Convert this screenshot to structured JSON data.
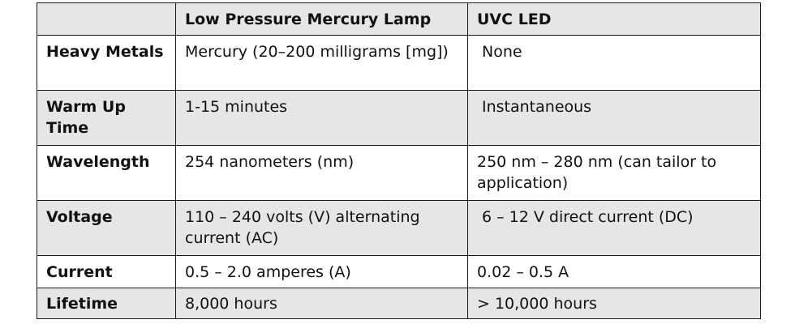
{
  "table": {
    "header": {
      "col0": "",
      "col1": "Low Pressure Mercury Lamp",
      "col2": "UVC LED"
    },
    "rows": [
      {
        "label": "Heavy Metals",
        "mercury": "Mercury (20–200 milligrams [mg])",
        "led": "None"
      },
      {
        "label": "Warm Up Time",
        "mercury": "1-15 minutes",
        "led": "Instantaneous"
      },
      {
        "label": "Wavelength",
        "mercury": "254 nanometers (nm)",
        "led": "250 nm – 280 nm (can tailor to application)"
      },
      {
        "label": "Voltage",
        "mercury": "110 – 240 volts (V) alternating current (AC)",
        "led": "6 – 12 V direct current (DC)"
      },
      {
        "label": "Current",
        "mercury": "0.5 – 2.0 amperes (A)",
        "led": "0.02 – 0.5 A"
      },
      {
        "label": "Lifetime",
        "mercury": "8,000 hours",
        "led": "> 10,000 hours"
      }
    ]
  },
  "colors": {
    "shaded_row": "#e6e6e6",
    "border": "#1a1a1a",
    "text": "#111111"
  }
}
